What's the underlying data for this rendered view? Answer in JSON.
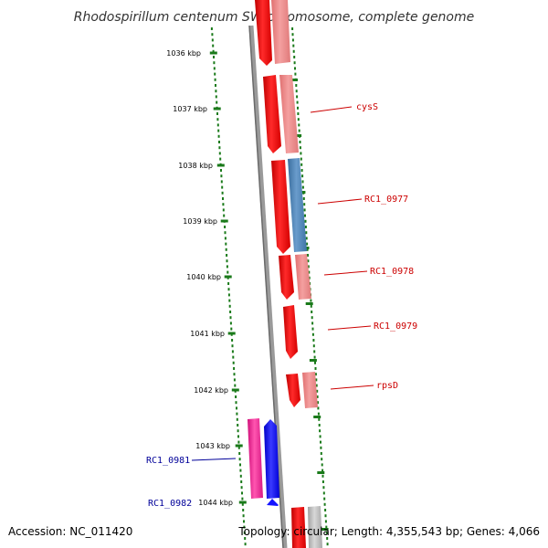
{
  "title": "Rhodospirillum centenum SW chromosome, complete genome",
  "footer": {
    "accession": "Accession: NC_011420",
    "topology": "Topology: circular; Length: 4,355,543 bp; Genes: 4,066"
  },
  "colors": {
    "tick": "#1a7a1a",
    "backbone": "#808080",
    "gene_forward": "#ff0000",
    "gene_forward_light": "#f08080",
    "gene_blue": "#4682b4",
    "gene_magenta": "#ff1493",
    "gene_navy": "#0000ff",
    "label_red": "#cc0000",
    "label_blue": "#000099"
  },
  "kbp_ticks": [
    "1036 kbp",
    "1037 kbp",
    "1038 kbp",
    "1039 kbp",
    "1040 kbp",
    "1041 kbp",
    "1042 kbp",
    "1043 kbp",
    "1044 kbp"
  ],
  "gene_labels": {
    "right": [
      "cysS",
      "RC1_0977",
      "RC1_0978",
      "RC1_0979",
      "rpsD"
    ],
    "left": [
      "RC1_0981",
      "RC1_0982"
    ]
  }
}
